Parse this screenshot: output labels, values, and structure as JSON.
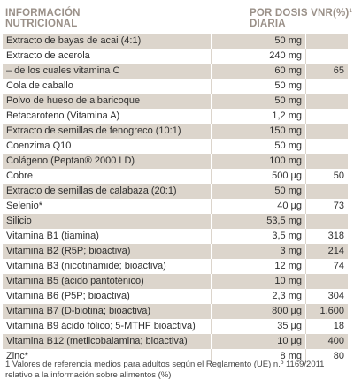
{
  "header": {
    "col1_line1": "INFORMACIÓN",
    "col1_line2": "NUTRICIONAL",
    "col2_line1": "POR DOSIS VNR(%)",
    "col2_sup": "1",
    "col2_line2": "DIARIA"
  },
  "rows": [
    {
      "name": "Extracto de bayas de acai  (4:1)",
      "dose": "50 mg",
      "vnr": ""
    },
    {
      "name": "Extracto de acerola",
      "dose": "240 mg",
      "vnr": ""
    },
    {
      "name": "– de los cuales vitamina C",
      "dose": "60 mg",
      "vnr": "65"
    },
    {
      "name": "Cola de caballo",
      "dose": "50 mg",
      "vnr": ""
    },
    {
      "name": "Polvo de hueso de albaricoque",
      "dose": "50 mg",
      "vnr": ""
    },
    {
      "name": "Betacaroteno (Vitamina A)",
      "dose": "1,2 mg",
      "vnr": ""
    },
    {
      "name": "Extracto de semillas de fenogreco (10:1)",
      "dose": "150 mg",
      "vnr": ""
    },
    {
      "name": "Coenzima Q10",
      "dose": "50 mg",
      "vnr": ""
    },
    {
      "name": "Colágeno  (Peptan® 2000 LD)",
      "dose": "100 mg",
      "vnr": ""
    },
    {
      "name": "Cobre",
      "dose": "500 µg",
      "vnr": "50"
    },
    {
      "name": "Extracto de semillas de calabaza (20:1)",
      "dose": "50 mg",
      "vnr": ""
    },
    {
      "name": "Selenio*",
      "dose": "40 µg",
      "vnr": "73"
    },
    {
      "name": "Silicio",
      "dose": "53,5 mg",
      "vnr": ""
    },
    {
      "name": "Vitamina B1 (tiamina)",
      "dose": "3,5 mg",
      "vnr": "318"
    },
    {
      "name": "Vitamina B2 (R5P; bioactiva)",
      "dose": "3 mg",
      "vnr": "214"
    },
    {
      "name": "Vitamina B3 (nicotinamide; bioactiva)",
      "dose": "12 mg",
      "vnr": "74"
    },
    {
      "name": "Vitamina B5 (ácido pantoténico)",
      "dose": "10 mg",
      "vnr": ""
    },
    {
      "name": "Vitamina B6 (P5P; bioactiva)",
      "dose": "2,3 mg",
      "vnr": "304"
    },
    {
      "name": "Vitamina B7 (D-biotina; bioactiva)",
      "dose": "800 µg",
      "vnr": "1.600"
    },
    {
      "name": "Vitamina B9 ácido fólico; 5-MTHF bioactiva)",
      "dose": "35 µg",
      "vnr": "18"
    },
    {
      "name": "Vitamina B12 (metilcobalamina; bioactiva)",
      "dose": "10 µg",
      "vnr": "400"
    },
    {
      "name": "Zinc*",
      "dose": "8 mg",
      "vnr": "80"
    }
  ],
  "footnote": "1  Valores de referencia medios para adultos según el Reglamento (UE) n.º 1169/2011 relativo a la información sobre alimentos (%)",
  "colors": {
    "shade": "#dcd5cc",
    "header_text": "#9a9088"
  }
}
